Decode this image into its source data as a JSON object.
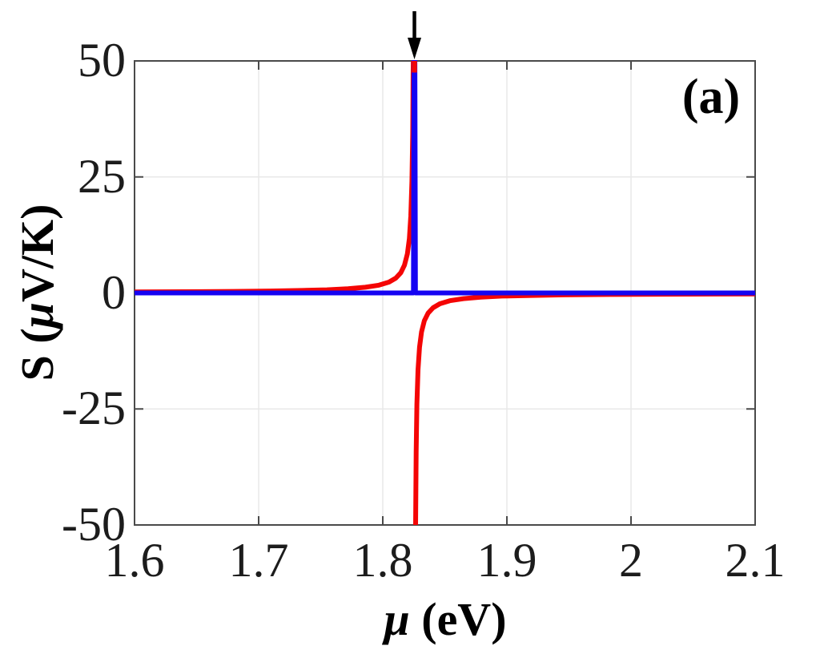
{
  "figure": {
    "panel_label": "(a)",
    "background_color": "#ffffff",
    "axes_box_color": "#4a4a4a",
    "grid_color": "#e8e8e8",
    "text_color": "#1c1c1c"
  },
  "chart_data": {
    "type": "line",
    "title": "",
    "xlabel": {
      "mu": "μ",
      "rest": " (eV)"
    },
    "ylabel": {
      "pre": "S (",
      "mu": "μ",
      "post": "V/K)"
    },
    "xlim": [
      1.6,
      2.1
    ],
    "ylim": [
      -50,
      50
    ],
    "xticks": {
      "values": [
        1.6,
        1.7,
        1.8,
        1.9,
        2.0,
        2.1
      ],
      "labels": [
        "1.6",
        "1.7",
        "1.8",
        "1.9",
        "2",
        "2.1"
      ]
    },
    "yticks": {
      "values": [
        50,
        25,
        0,
        -25,
        -50
      ],
      "labels": [
        "50",
        "25",
        "0",
        "-25",
        "-50"
      ]
    },
    "grid": true,
    "legend": "none",
    "resonance_mu_ev": 1.8255,
    "annotation_arrow": {
      "x_ev": 1.8255,
      "direction": "down",
      "color": "#000000"
    },
    "red_top_cap": {
      "x_ev": 1.8255,
      "s_from": 50,
      "s_to": 47.5
    },
    "series": [
      {
        "name": "red-curve",
        "color": "#f40505",
        "linewidth": 6,
        "segments": [
          [
            [
              1.6,
              0.21
            ],
            [
              1.64,
              0.26
            ],
            [
              1.68,
              0.33
            ],
            [
              1.71,
              0.42
            ],
            [
              1.735,
              0.53
            ],
            [
              1.755,
              0.68
            ],
            [
              1.772,
              0.9
            ],
            [
              1.786,
              1.22
            ],
            [
              1.797,
              1.68
            ],
            [
              1.805,
              2.34
            ],
            [
              1.8105,
              3.2
            ],
            [
              1.8145,
              4.36
            ],
            [
              1.8175,
              6.0
            ],
            [
              1.8198,
              8.4
            ],
            [
              1.8214,
              11.7
            ],
            [
              1.8226,
              16.6
            ],
            [
              1.8235,
              24.0
            ],
            [
              1.8241,
              34.3
            ],
            [
              1.82448,
              47.0
            ],
            [
              1.82455,
              50.0
            ]
          ],
          [
            [
              1.82645,
              -50.0
            ],
            [
              1.8269,
              -34.3
            ],
            [
              1.8275,
              -24.0
            ],
            [
              1.8284,
              -16.6
            ],
            [
              1.8296,
              -11.7
            ],
            [
              1.8312,
              -8.4
            ],
            [
              1.8335,
              -6.0
            ],
            [
              1.8365,
              -4.36
            ],
            [
              1.8405,
              -3.2
            ],
            [
              1.846,
              -2.34
            ],
            [
              1.854,
              -1.68
            ],
            [
              1.865,
              -1.22
            ],
            [
              1.879,
              -0.9
            ],
            [
              1.896,
              -0.68
            ],
            [
              1.9205,
              -0.53
            ],
            [
              1.9455,
              -0.42
            ],
            [
              1.9855,
              -0.33
            ],
            [
              2.045,
              -0.26
            ],
            [
              2.1,
              -0.21
            ]
          ]
        ]
      },
      {
        "name": "blue-curve",
        "color": "#1503f2",
        "linewidth": 6,
        "segments": [
          [
            [
              1.6,
              0.0
            ],
            [
              1.8247,
              0.0
            ],
            [
              1.82515,
              50.0
            ],
            [
              1.82585,
              50.0
            ],
            [
              1.8263,
              0.0
            ],
            [
              2.1,
              0.0
            ]
          ]
        ]
      }
    ]
  }
}
